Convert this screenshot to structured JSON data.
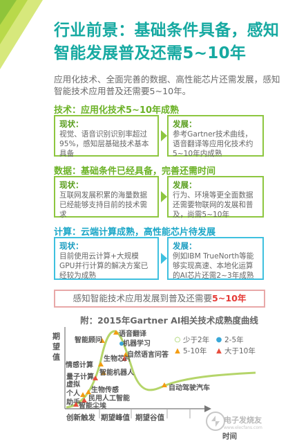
{
  "title": "行业前景：基础条件具备，感知智能发展普及还需5~10年",
  "intro": "应用化技术、全面完善的数据、高性能芯片还需发展，感知智能技术应用普及还需要5~10年。",
  "sections": [
    {
      "heading": "技术：应用化技术5~10年成熟",
      "status_title": "现状：",
      "status_text": "视觉、语音识别识别率超过95%，感知层基础技术基本具备",
      "dev_title": "发展：",
      "dev_text": "参考Gartner技术曲线，语音翻译等应用化技术约5~10年内成熟"
    },
    {
      "heading": "数据：基础条件已经具备，完善还需时间",
      "status_title": "现状：",
      "status_text": "互联网发展积累的海量数据已经能够支持目前的技术需求",
      "dev_title": "发展：",
      "dev_text": "行为、环境等更全面数据还需要物联网的发展和普及，尚需5~10年"
    },
    {
      "heading": "计算：云端计算成熟，高性能芯片待发展",
      "status_title": "现状：",
      "status_text": "目前使用云计算+大规模GPU并行计算的解决方案已经较为成熟",
      "dev_title": "发展：",
      "dev_text": "例如IBM TrueNorth等能够实现高速、本地化运算的AI芯片还需2~3年成熟"
    }
  ],
  "conclusion": {
    "text": "感知智能技术应用发展到普及还需要",
    "highlight": "5~10年"
  },
  "chart_data": {
    "type": "scatter",
    "title": "附：2015年Gartner AI相关技术成熟度曲线",
    "ylabel": "期望值",
    "xlabel": "时间",
    "phases": [
      "创新触发",
      "期望峰值",
      "期望谷值"
    ],
    "legend": [
      {
        "label": "少于2年",
        "color": "#8dc63f",
        "shape": "circle-open"
      },
      {
        "label": "2-5年",
        "color": "#3aa8d8",
        "shape": "circle"
      },
      {
        "label": "5-10年",
        "color": "#f39c12",
        "shape": "triangle"
      },
      {
        "label": "大于10年",
        "color": "#e74c3c",
        "shape": "triangle"
      }
    ],
    "points": [
      {
        "label": "智能顾问",
        "category": "5-10年"
      },
      {
        "label": "语音翻译",
        "category": "5-10年"
      },
      {
        "label": "机器学习",
        "category": "2-5年"
      },
      {
        "label": "自然语言问答",
        "category": "5-10年"
      },
      {
        "label": "生物芯片",
        "category": "大于10年"
      },
      {
        "label": "情感计算",
        "category": "5-10年"
      },
      {
        "label": "智能机器人",
        "category": "5-10年"
      },
      {
        "label": "量子计算",
        "category": "大于10年"
      },
      {
        "label": "虚拟个人助手",
        "category": "5-10年"
      },
      {
        "label": "生物传感",
        "category": "5-10年"
      },
      {
        "label": "民用人工智能",
        "category": "大于10年"
      },
      {
        "label": "智能尘埃",
        "category": "大于10年"
      },
      {
        "label": "自动驾驶汽车",
        "category": "5-10年"
      }
    ]
  },
  "watermark": {
    "text": "电子发烧友",
    "sub": "www.elecfans.com"
  },
  "colors": {
    "title": "#16a9a1",
    "green": "#8dc63f",
    "teal": "#3ec0df",
    "highlight": "#e53935",
    "curve": "#b5d56a"
  }
}
